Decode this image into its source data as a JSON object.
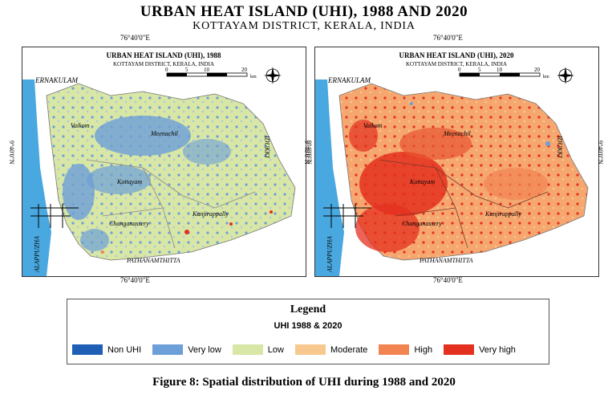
{
  "header": {
    "title": "URBAN HEAT ISLAND (UHI), 1988 AND 2020",
    "subtitle": "KOTTAYAM DISTRICT, KERALA, INDIA"
  },
  "maps": [
    {
      "title": "URBAN HEAT ISLAND (UHI), 1988",
      "subtitle": "KOTTAYAM DISTRICT, KERALA, INDIA",
      "coord_top": "76°40'0\"E",
      "coord_bottom": "76°40'0\"E",
      "coord_side": "9°40'0\"N",
      "scale_labels": [
        "0",
        "5",
        "10",
        "20"
      ],
      "scale_unit": "km",
      "places": [
        "ERNAKULAM",
        "IDUKKI",
        "ALAPPUZHA",
        "PATHANAMTHITTA",
        "Vaikom",
        "Meenachil",
        "Kottayam",
        "Changanassery",
        "Kanjirappally"
      ],
      "dominant_class": "Low"
    },
    {
      "title": "URBAN HEAT ISLAND (UHI), 2020",
      "subtitle": "KOTTAYAM DISTRICT, KERALA, INDIA",
      "coord_top": "76°40'0\"E",
      "coord_bottom": "76°40'0\"E",
      "coord_side": "9°40'0\"N",
      "scale_labels": [
        "0",
        "5",
        "10",
        "20"
      ],
      "scale_unit": "km",
      "places": [
        "ERNAKULAM",
        "IDUKKI",
        "ALAPPUZHA",
        "PATHANAMTHITTA",
        "Vaikom",
        "Meenachil",
        "Kottayam",
        "Changanassery",
        "Kanjirappally"
      ],
      "dominant_class": "High"
    }
  ],
  "legend": {
    "title": "Legend",
    "subtitle": "UHI 1988 & 2020",
    "items": [
      {
        "label": "Non UHI",
        "color": "#1f5fb5"
      },
      {
        "label": "Very low",
        "color": "#6d9fd8"
      },
      {
        "label": "Low",
        "color": "#d8e6a6"
      },
      {
        "label": "Moderate",
        "color": "#f8c98f"
      },
      {
        "label": "High",
        "color": "#f28452"
      },
      {
        "label": "Very high",
        "color": "#e4301f"
      }
    ]
  },
  "colors": {
    "water": "#4aa8e0",
    "outside": "#ffffff"
  },
  "compass": "N",
  "caption": "Figure 8: Spatial distribution of UHI during 1988 and 2020"
}
